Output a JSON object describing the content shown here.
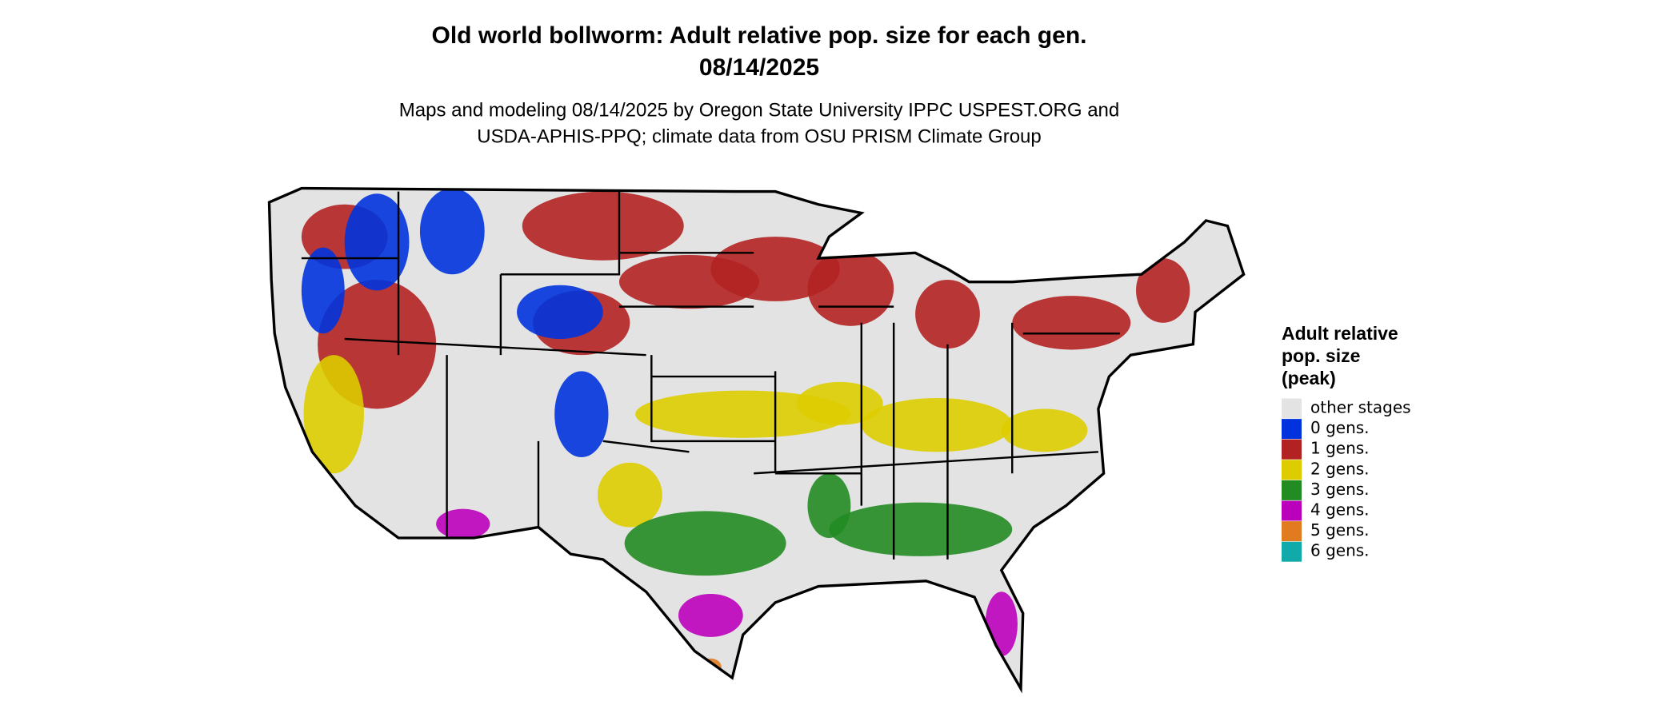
{
  "title": [
    "Old world bollworm: Adult relative pop. size for each gen.",
    "08/14/2025"
  ],
  "subtitle": [
    "Maps and modeling 08/14/2025 by Oregon State University IPPC USPEST.ORG and",
    "USDA-APHIS-PPQ; climate data from OSU PRISM Climate Group"
  ],
  "legend": {
    "title": [
      "Adult relative",
      "pop. size",
      "(peak)"
    ],
    "items": [
      {
        "label": "other stages",
        "color": "#e3e3e3"
      },
      {
        "label": "0 gens.",
        "color": "#0033dd"
      },
      {
        "label": "1 gens.",
        "color": "#b22222"
      },
      {
        "label": "2 gens.",
        "color": "#ddcc00"
      },
      {
        "label": "3 gens.",
        "color": "#228b22"
      },
      {
        "label": "4 gens.",
        "color": "#bb00bb"
      },
      {
        "label": "5 gens.",
        "color": "#e07b20"
      },
      {
        "label": "6 gens.",
        "color": "#11aaaa"
      }
    ]
  }
}
